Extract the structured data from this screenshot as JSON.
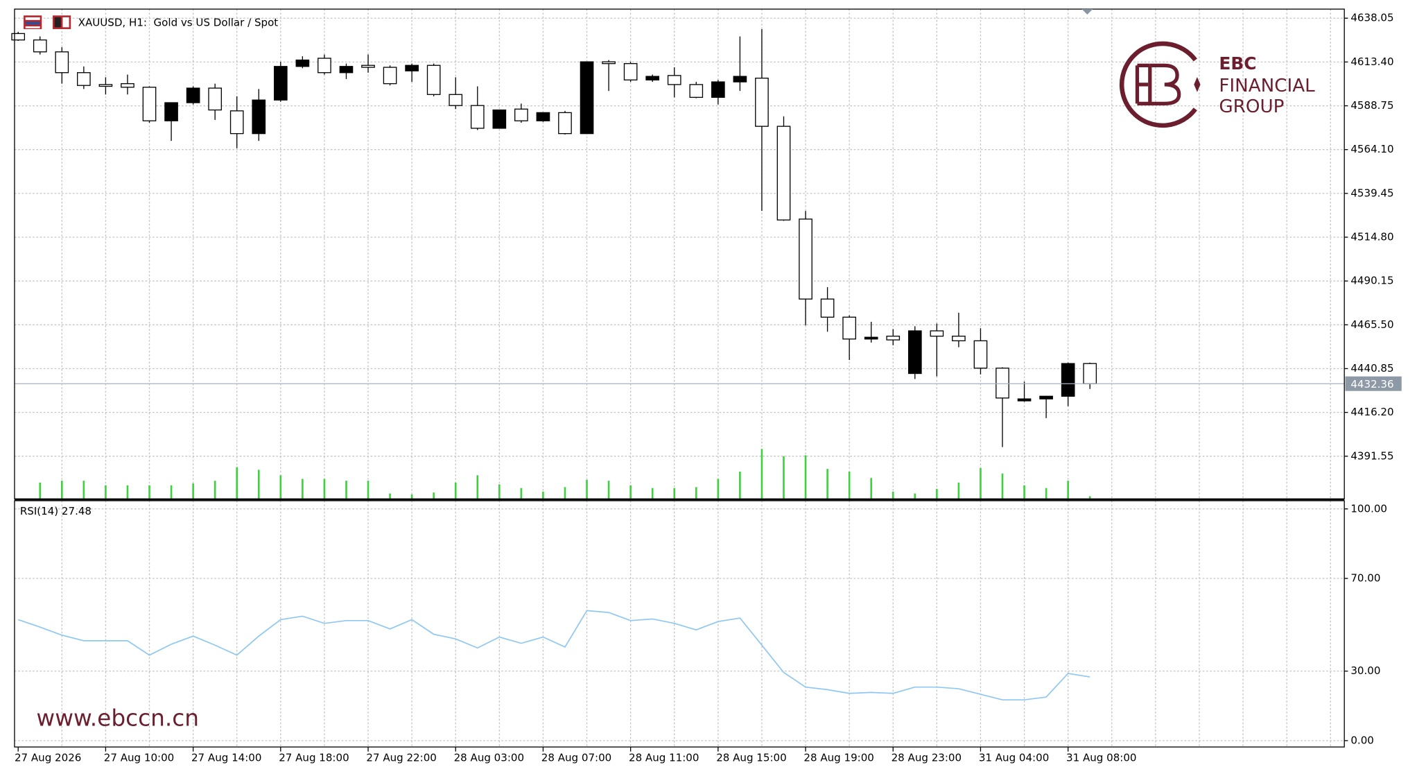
{
  "chart_data": [
    {
      "type": "candlestick",
      "title": "XAUUSD, H1:  Gold vs US Dollar / Spot",
      "categories": [
        "27 Aug 2026",
        null,
        null,
        null,
        "27 Aug 10:00",
        null,
        null,
        null,
        "27 Aug 14:00",
        null,
        null,
        null,
        "27 Aug 18:00",
        null,
        null,
        null,
        "27 Aug 22:00",
        null,
        null,
        null,
        "28 Aug 03:00",
        null,
        null,
        null,
        "28 Aug 07:00",
        null,
        null,
        null,
        "28 Aug 11:00",
        null,
        null,
        null,
        "28 Aug 15:00",
        null,
        null,
        null,
        "28 Aug 19:00",
        null,
        null,
        null,
        "28 Aug 23:00",
        null,
        null,
        null,
        "31 Aug 04:00",
        null,
        null,
        null,
        "31 Aug 08:00",
        null
      ],
      "open": [
        4629.4,
        4625.8,
        4619.1,
        4607.4,
        4600.7,
        4601.2,
        4599.2,
        4580.3,
        4590.5,
        4598.7,
        4585.9,
        4573.1,
        4592.0,
        4610.9,
        4615.5,
        4607.4,
        4611.5,
        4610.4,
        4608.4,
        4611.5,
        4595.1,
        4588.9,
        4576.1,
        4586.9,
        4580.3,
        4584.9,
        4573.1,
        4613.5,
        4612.5,
        4603.3,
        4605.8,
        4600.7,
        4593.5,
        4602.2,
        4604.3,
        4577.2,
        4525.0,
        4480.0,
        4469.8,
        4457.5,
        4459.1,
        4438.1,
        4462.1,
        4459.1,
        4456.5,
        4441.1,
        4422.7,
        4423.8,
        4425.3,
        4443.7
      ],
      "high": [
        4630.4,
        4627.8,
        4621.7,
        4610.9,
        4604.8,
        4606.3,
        4599.7,
        4590.5,
        4599.7,
        4601.2,
        4594.1,
        4598.2,
        4613.5,
        4616.6,
        4617.6,
        4612.5,
        4617.6,
        4611.5,
        4612.5,
        4612.5,
        4604.8,
        4599.7,
        4586.4,
        4590.0,
        4584.9,
        4585.9,
        4613.5,
        4614.5,
        4613.5,
        4606.3,
        4610.4,
        4602.2,
        4603.3,
        4627.8,
        4631.9,
        4582.8,
        4529.6,
        4486.7,
        4470.8,
        4467.2,
        4463.1,
        4464.7,
        4466.2,
        4472.3,
        4463.6,
        4441.6,
        4433.5,
        4425.3,
        4444.2,
        4444.2
      ],
      "low": [
        4625.3,
        4617.6,
        4601.2,
        4598.2,
        4595.1,
        4595.1,
        4579.2,
        4569.0,
        4589.5,
        4580.8,
        4564.9,
        4569.0,
        4591.0,
        4609.9,
        4606.3,
        4603.8,
        4607.4,
        4600.2,
        4602.2,
        4594.1,
        4586.9,
        4575.1,
        4576.1,
        4579.2,
        4579.7,
        4572.6,
        4573.1,
        4597.1,
        4602.2,
        4602.2,
        4593.5,
        4593.0,
        4589.5,
        4597.1,
        4529.6,
        4524.0,
        4465.2,
        4461.6,
        4445.7,
        4455.5,
        4454.0,
        4435.0,
        4436.5,
        4452.9,
        4437.6,
        4396.7,
        4422.2,
        4413.0,
        4419.7,
        4429.4
      ],
      "close": [
        4625.8,
        4619.1,
        4607.4,
        4600.2,
        4599.7,
        4599.2,
        4580.3,
        4590.5,
        4598.7,
        4586.4,
        4573.1,
        4592.0,
        4610.9,
        4614.5,
        4607.4,
        4610.9,
        4610.4,
        4601.2,
        4611.5,
        4595.1,
        4588.9,
        4576.1,
        4586.4,
        4580.3,
        4584.9,
        4573.1,
        4613.5,
        4612.5,
        4603.3,
        4605.3,
        4600.7,
        4593.5,
        4602.2,
        4605.3,
        4577.2,
        4524.5,
        4480.0,
        4469.8,
        4457.5,
        4458.5,
        4457.0,
        4462.1,
        4459.1,
        4456.5,
        4441.1,
        4424.3,
        4423.8,
        4425.3,
        4443.7,
        4432.36
      ],
      "volume": [
        null,
        18,
        20,
        20,
        15,
        15,
        15,
        15,
        17,
        20,
        35,
        32,
        26,
        22,
        22,
        20,
        20,
        6,
        5,
        7,
        18,
        26,
        16,
        12,
        8,
        13,
        21,
        20,
        15,
        12,
        12,
        13,
        22,
        30,
        55,
        47,
        48,
        33,
        30,
        23,
        8,
        6,
        11,
        18,
        34,
        28,
        15,
        12,
        20,
        3
      ],
      "volume_color": "#3fd03f",
      "last_price": 4432.36,
      "ylim": [
        4367.52,
        4643.16
      ],
      "yticks": [
        4638.05,
        {
          "value": 4613.4,
          "label": "4613.40"
        },
        4588.75,
        {
          "value": 4564.1,
          "label": "4564.10"
        },
        4539.45,
        {
          "value": 4514.8,
          "label": "4514.80"
        },
        4490.15,
        {
          "value": 4465.5,
          "label": "4465.50"
        },
        4440.85,
        {
          "value": 4416.2,
          "label": "4416.20"
        },
        4391.55
      ],
      "grid": true
    },
    {
      "type": "line",
      "title": "RSI(14) 27.48",
      "values": [
        52.2,
        49.0,
        45.5,
        43.1,
        43.1,
        43.1,
        36.9,
        41.6,
        45.1,
        41.2,
        36.9,
        45.1,
        52.2,
        53.7,
        50.6,
        51.8,
        51.8,
        48.2,
        52.2,
        45.9,
        43.9,
        40.0,
        44.7,
        42.0,
        44.7,
        40.4,
        56.1,
        55.3,
        51.8,
        52.5,
        50.6,
        47.8,
        51.4,
        52.9,
        41.2,
        29.4,
        23.1,
        22.0,
        20.4,
        20.8,
        20.4,
        23.1,
        23.1,
        22.4,
        20.0,
        17.6,
        17.6,
        18.8,
        29.0,
        27.48
      ],
      "color": "#8ec8f2",
      "ylim": [
        -2.75,
        103.53
      ],
      "yticks": [
        {
          "value": 100,
          "label": "100.00"
        },
        {
          "value": 70,
          "label": "70.00"
        },
        {
          "value": 30,
          "label": "30.00"
        },
        {
          "value": 0,
          "label": "0.00"
        }
      ],
      "grid": true
    }
  ],
  "branding": {
    "logo_lines": [
      "EBC",
      "FINANCIAL",
      "GROUP"
    ],
    "website": "www.ebccn.cn"
  }
}
